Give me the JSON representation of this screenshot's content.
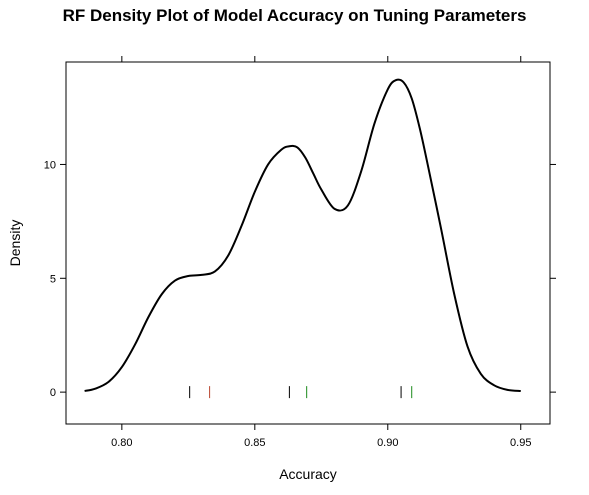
{
  "chart_data": {
    "type": "line",
    "title": "RF Density Plot of Model Accuracy on Tuning Parameters",
    "xlabel": "Accuracy",
    "ylabel": "Density",
    "xlim": [
      0.779,
      0.961
    ],
    "ylim": [
      -1.4,
      14.5
    ],
    "x_ticks": [
      0.8,
      0.85,
      0.9,
      0.95
    ],
    "x_tick_labels": [
      "0.80",
      "0.85",
      "0.90",
      "0.95"
    ],
    "y_ticks": [
      0,
      5,
      10
    ],
    "y_tick_labels": [
      "0",
      "5",
      "10"
    ],
    "grid": false,
    "line_color": "#000000",
    "series": [
      {
        "x": [
          0.786,
          0.79,
          0.795,
          0.8,
          0.805,
          0.81,
          0.815,
          0.82,
          0.825,
          0.83,
          0.835,
          0.84,
          0.845,
          0.85,
          0.855,
          0.86,
          0.863,
          0.866,
          0.869,
          0.872,
          0.875,
          0.88,
          0.885,
          0.89,
          0.895,
          0.9,
          0.903,
          0.906,
          0.909,
          0.912,
          0.915,
          0.92,
          0.925,
          0.93,
          0.935,
          0.94,
          0.945,
          0.95
        ],
        "y": [
          0.05,
          0.15,
          0.45,
          1.1,
          2.1,
          3.3,
          4.3,
          4.9,
          5.1,
          5.15,
          5.3,
          6.0,
          7.3,
          8.8,
          10.0,
          10.65,
          10.8,
          10.75,
          10.3,
          9.6,
          8.9,
          8.05,
          8.2,
          9.7,
          11.8,
          13.3,
          13.7,
          13.6,
          12.9,
          11.6,
          10.0,
          7.2,
          4.3,
          2.0,
          0.8,
          0.3,
          0.1,
          0.05
        ]
      }
    ],
    "rug": [
      {
        "x": 0.8255,
        "color": "#000000"
      },
      {
        "x": 0.833,
        "color": "#b8442e"
      },
      {
        "x": 0.863,
        "color": "#000000"
      },
      {
        "x": 0.8695,
        "color": "#1a8a1a"
      },
      {
        "x": 0.905,
        "color": "#000000"
      },
      {
        "x": 0.909,
        "color": "#1a8a1a"
      }
    ]
  }
}
